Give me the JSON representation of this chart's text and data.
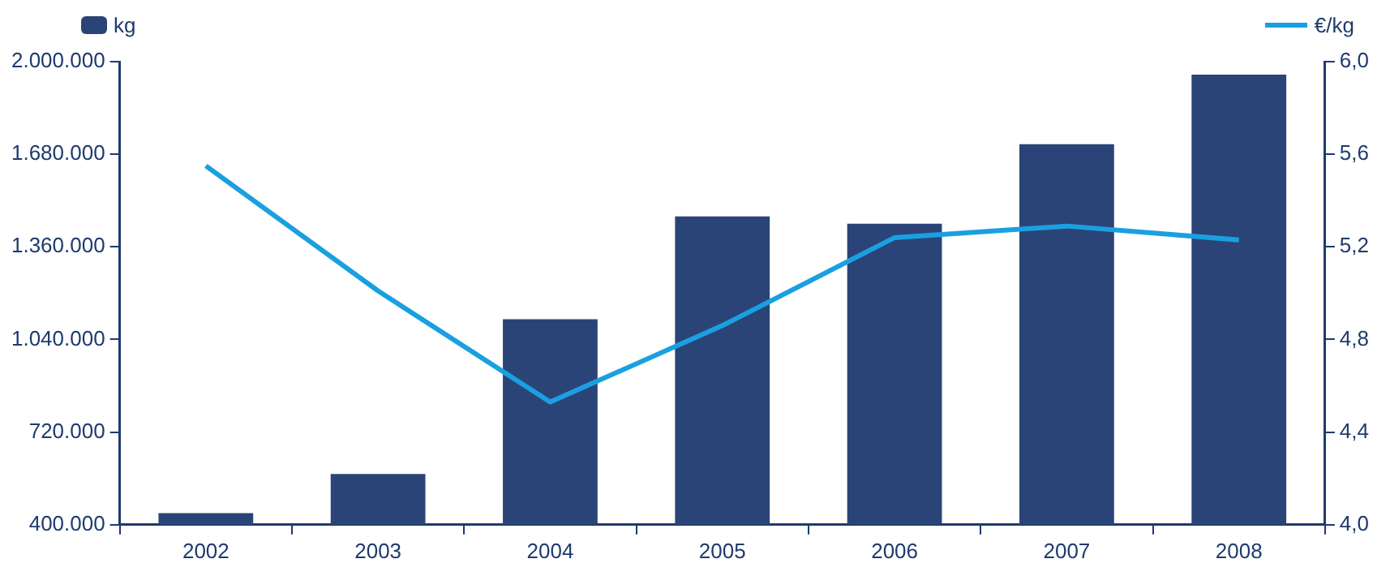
{
  "chart_data": {
    "type": "bar",
    "categories": [
      "2002",
      "2003",
      "2004",
      "2005",
      "2006",
      "2007",
      "2008"
    ],
    "series": [
      {
        "name": "kg",
        "color": "#2a4478",
        "values": [
          440000,
          575000,
          1110000,
          1465000,
          1440000,
          1715000,
          1955000
        ]
      },
      {
        "name": "€/kg",
        "type": "line",
        "axis": "y2",
        "color": "#1aa0e0",
        "values": [
          5.55,
          5.01,
          4.53,
          4.86,
          5.24,
          5.29,
          5.23
        ]
      }
    ],
    "ylim": [
      400000,
      2000000
    ],
    "yticks": [
      {
        "value": 400000,
        "label": "400.000"
      },
      {
        "value": 720000,
        "label": "720.000"
      },
      {
        "value": 1040000,
        "label": "1.040.000"
      },
      {
        "value": 1360000,
        "label": "1.360.000"
      },
      {
        "value": 1680000,
        "label": "1.680.000"
      },
      {
        "value": 2000000,
        "label": "2.000.000"
      }
    ],
    "y2lim": [
      4,
      6
    ],
    "y2ticks": [
      {
        "value": 4,
        "label": "4,0"
      },
      {
        "value": 4.4,
        "label": "4,4"
      },
      {
        "value": 4.8,
        "label": "4,8"
      },
      {
        "value": 5.2,
        "label": "5,2"
      },
      {
        "value": 5.6,
        "label": "5,6"
      },
      {
        "value": 6,
        "label": "6,0"
      }
    ],
    "grid": false,
    "legend": "top",
    "marker": "none"
  }
}
